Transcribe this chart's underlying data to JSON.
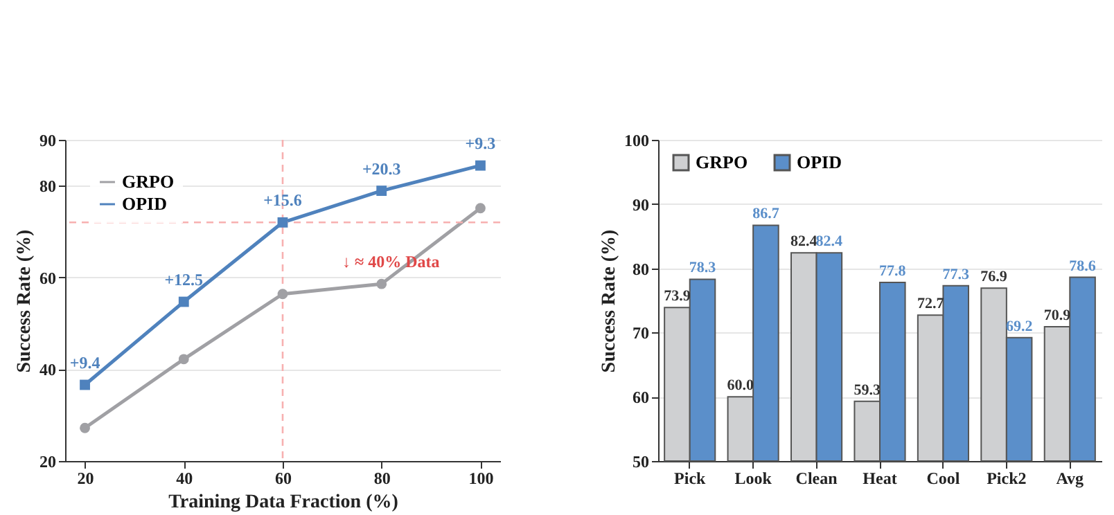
{
  "chart_data": [
    {
      "type": "line",
      "xlabel": "Training Data Fraction (%)",
      "ylabel": "Success Rate (%)",
      "x": [
        20,
        40,
        60,
        80,
        100
      ],
      "series": [
        {
          "name": "GRPO",
          "color": "#a0a0a4",
          "values": [
            27.2,
            42.2,
            56.4,
            58.6,
            75.1
          ],
          "marker": "circle"
        },
        {
          "name": "OPID",
          "color": "#4f82bd",
          "values": [
            36.6,
            54.7,
            72.0,
            78.9,
            84.4
          ],
          "marker": "square"
        }
      ],
      "xlim": [
        16,
        104
      ],
      "xticks": [
        20,
        40,
        60,
        80,
        100
      ],
      "ylim": [
        20,
        90
      ],
      "yticks": [
        20,
        40,
        60,
        80,
        90
      ],
      "ref_lines": [
        {
          "axis": "x",
          "value": 60,
          "color": "#f7b0b0",
          "line_style": "dashed"
        },
        {
          "axis": "y",
          "value": 72.0,
          "color": "#f7b0b0",
          "line_style": "dashed"
        }
      ],
      "annotations": [
        {
          "text": "+9.4",
          "x": 20,
          "y": 36.6
        },
        {
          "text": "+12.5",
          "x": 40,
          "y": 54.7
        },
        {
          "text": "+15.6",
          "x": 60,
          "y": 72.0
        },
        {
          "text": "+20.3",
          "x": 80,
          "y": 78.9
        },
        {
          "text": "+9.3",
          "x": 100,
          "y": 84.4
        },
        "↓ ≈ 40% Data"
      ],
      "grid": "y",
      "legend": "top left"
    },
    {
      "type": "bar",
      "ylabel": "Success Rate (%)",
      "categories": [
        "Pick",
        "Look",
        "Clean",
        "Heat",
        "Cool",
        "Pick2",
        "Avg"
      ],
      "series": [
        {
          "name": "GRPO",
          "color": "#cfd0d2",
          "values": [
            73.9,
            60.0,
            82.4,
            59.3,
            72.7,
            76.9,
            70.9
          ],
          "value_labels": [
            "73.9",
            "60.0",
            "82.4",
            "59.3",
            "72.7",
            "76.9",
            "70.9"
          ]
        },
        {
          "name": "OPID",
          "color": "#5b8fca",
          "values": [
            78.3,
            86.7,
            82.4,
            77.8,
            77.3,
            69.2,
            78.6
          ],
          "value_labels": [
            "78.3",
            "86.7",
            "82.4",
            "77.8",
            "77.3",
            "69.2",
            "78.6"
          ]
        }
      ],
      "ylim": [
        50,
        100
      ],
      "yticks": [
        50,
        60,
        70,
        80,
        90,
        100
      ],
      "grid": "y",
      "legend": "top left"
    }
  ]
}
